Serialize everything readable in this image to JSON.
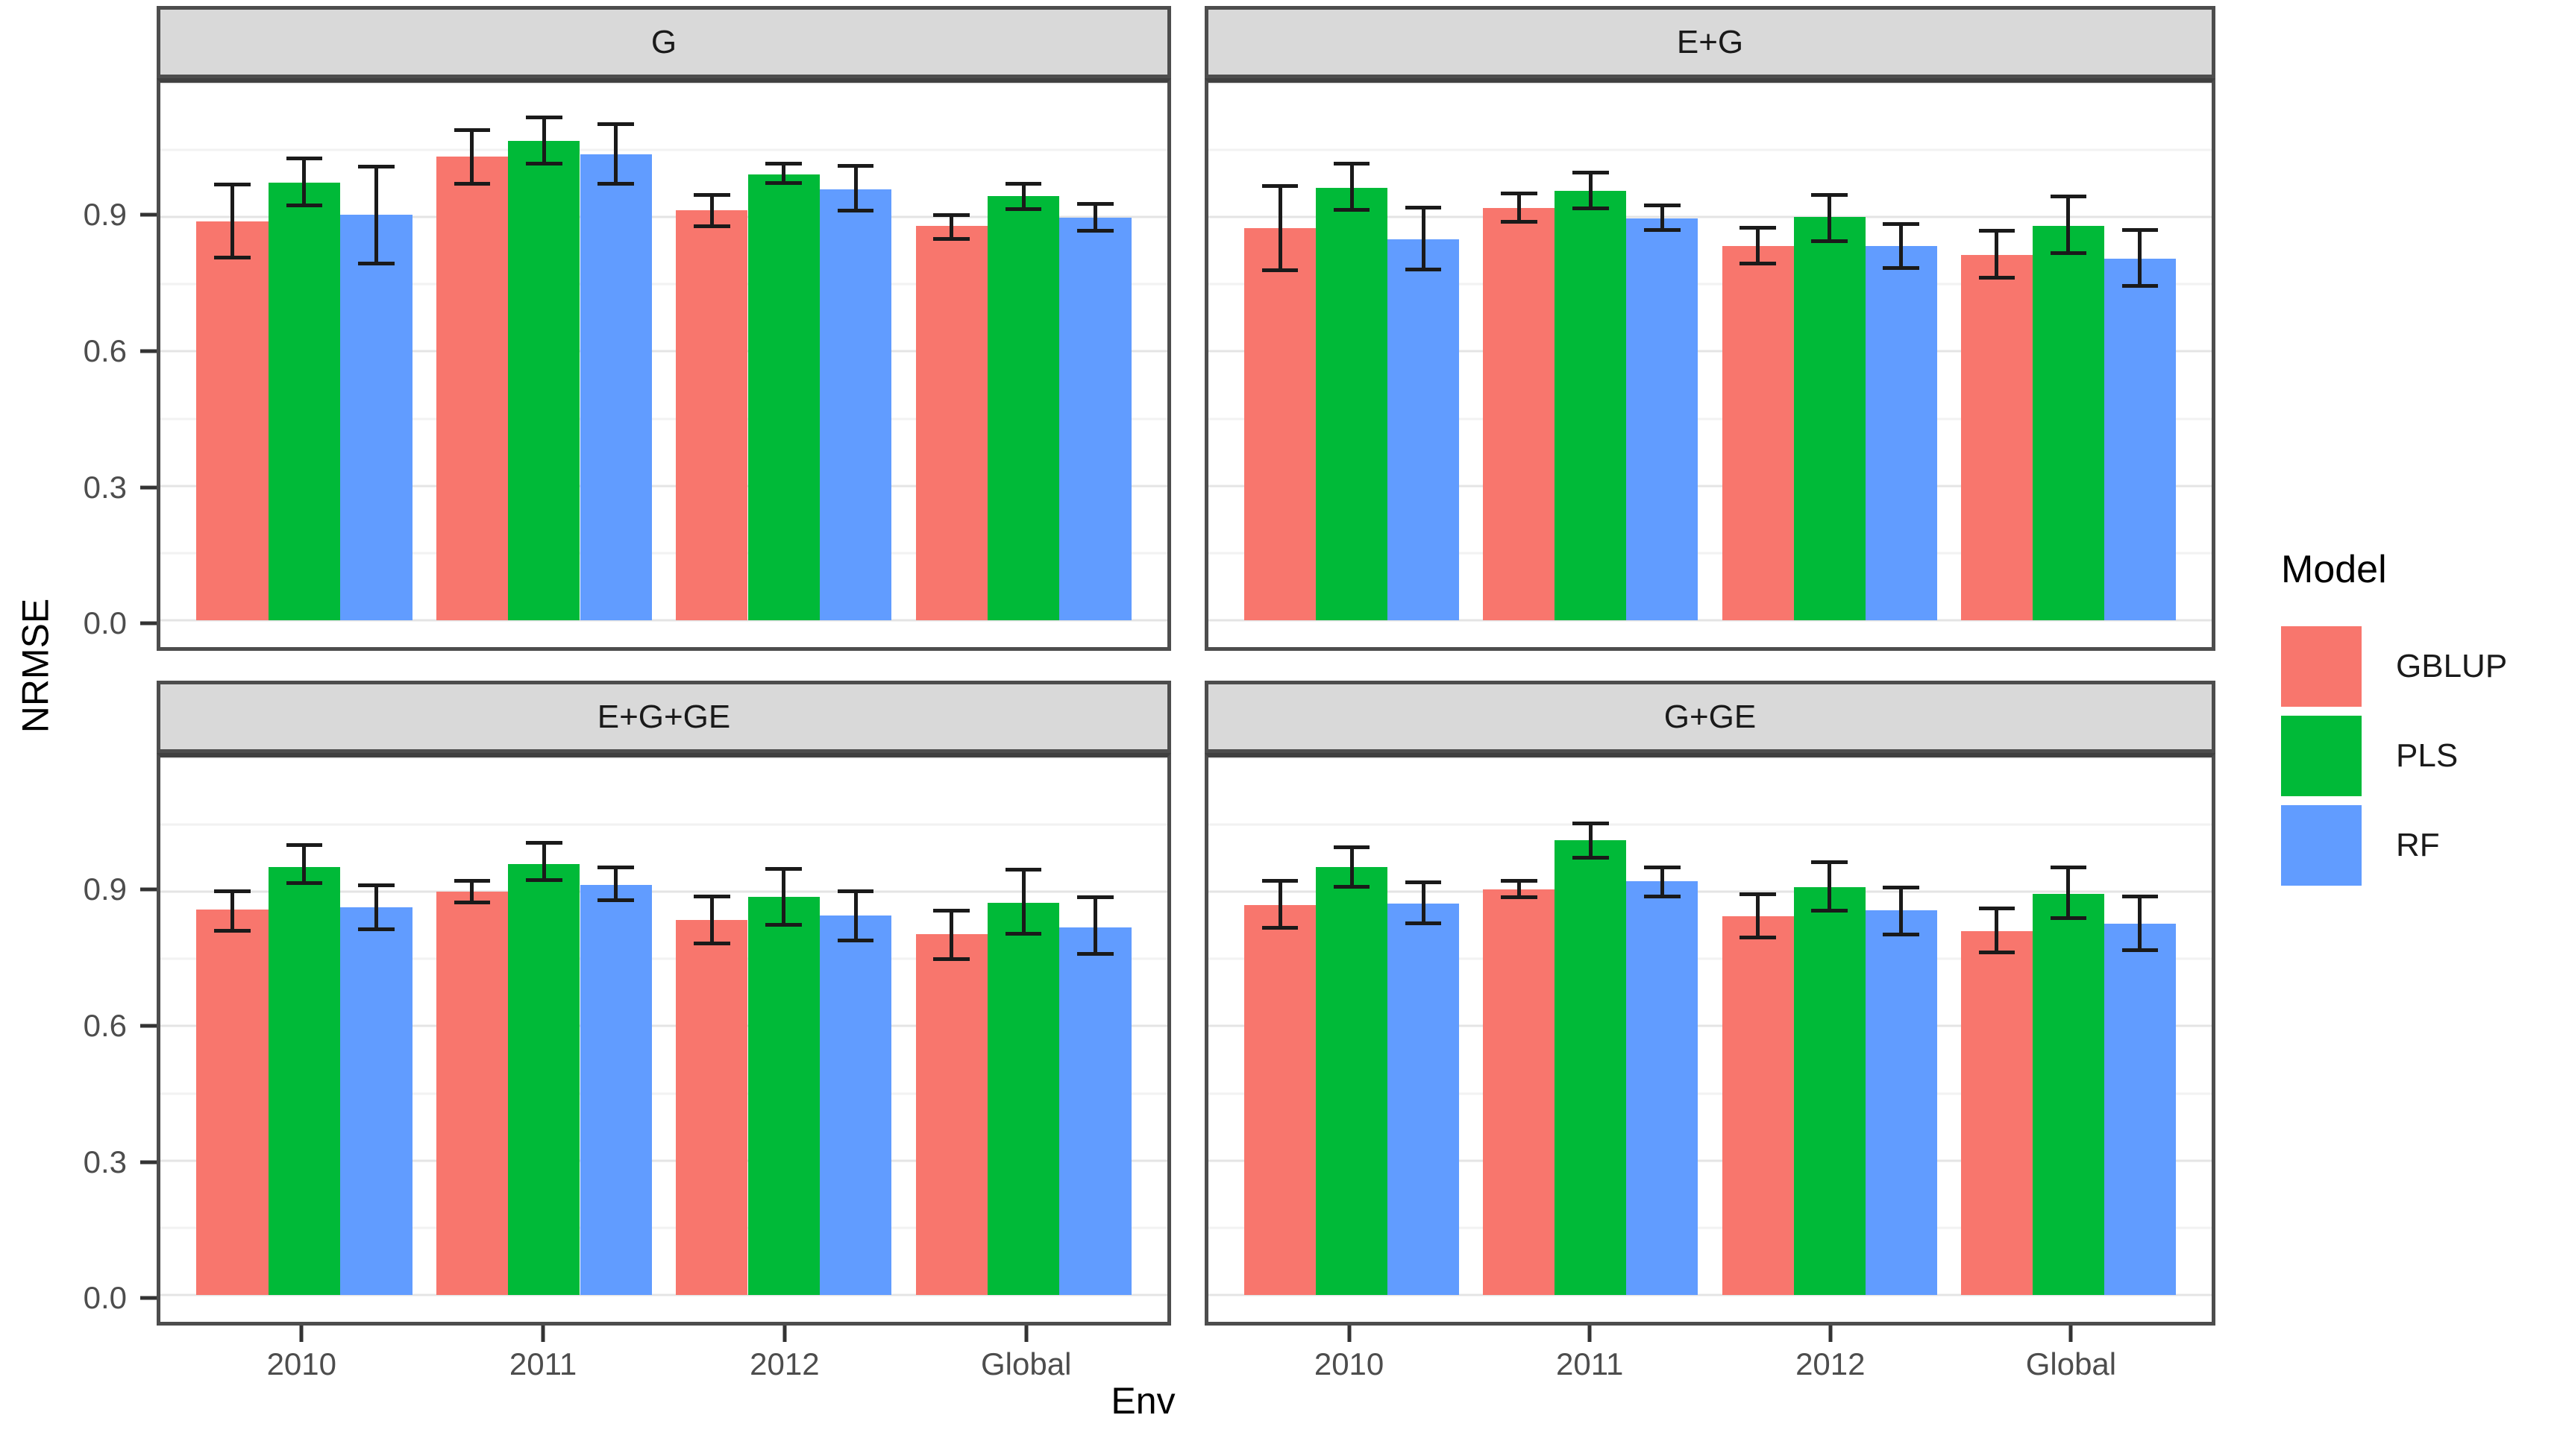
{
  "chart_data": {
    "type": "bar",
    "faceted": true,
    "ylabel": "NRMSE",
    "xlabel": "Env",
    "legend_title": "Model",
    "legend_position": "right",
    "grid_on": true,
    "ylim": [
      -0.06,
      1.2
    ],
    "y_ticks": [
      {
        "v": 0.0,
        "label": "0.0"
      },
      {
        "v": 0.3,
        "label": "0.3"
      },
      {
        "v": 0.6,
        "label": "0.6"
      },
      {
        "v": 0.9,
        "label": "0.9"
      }
    ],
    "grid": {
      "major": [
        0,
        0.3,
        0.6,
        0.9,
        1.2
      ],
      "minor": [
        0.15,
        0.45,
        0.75,
        1.05
      ]
    },
    "categories": [
      "2010",
      "2011",
      "2012",
      "Global"
    ],
    "series": [
      {
        "name": "GBLUP",
        "color": "#F8766D"
      },
      {
        "name": "PLS",
        "color": "#00BA38"
      },
      {
        "name": "RF",
        "color": "#619CFF"
      }
    ],
    "error_bars": true,
    "facets": [
      {
        "label": "G",
        "values": {
          "GBLUP": [
            0.89,
            1.035,
            0.915,
            0.88
          ],
          "PLS": [
            0.977,
            1.07,
            0.996,
            0.947
          ],
          "RF": [
            0.905,
            1.04,
            0.962,
            0.898
          ]
        },
        "err_low": {
          "GBLUP": [
            0.81,
            0.975,
            0.88,
            0.852
          ],
          "PLS": [
            0.926,
            1.02,
            0.976,
            0.918
          ],
          "RF": [
            0.796,
            0.975,
            0.915,
            0.87
          ]
        },
        "err_high": {
          "GBLUP": [
            0.972,
            1.095,
            0.95,
            0.905
          ],
          "PLS": [
            1.031,
            1.122,
            1.02,
            0.975
          ],
          "RF": [
            1.013,
            1.107,
            1.014,
            0.929
          ]
        }
      },
      {
        "label": "E+G",
        "values": {
          "GBLUP": [
            0.875,
            0.92,
            0.836,
            0.816
          ],
          "PLS": [
            0.966,
            0.959,
            0.9,
            0.881
          ],
          "RF": [
            0.851,
            0.897,
            0.836,
            0.808
          ]
        },
        "err_low": {
          "GBLUP": [
            0.782,
            0.89,
            0.797,
            0.765
          ],
          "PLS": [
            0.917,
            0.92,
            0.846,
            0.819
          ],
          "RF": [
            0.783,
            0.872,
            0.787,
            0.746
          ]
        },
        "err_high": {
          "GBLUP": [
            0.969,
            0.953,
            0.877,
            0.869
          ],
          "PLS": [
            1.019,
            0.999,
            0.95,
            0.946
          ],
          "RF": [
            0.921,
            0.926,
            0.885,
            0.871
          ]
        }
      },
      {
        "label": "E+G+GE",
        "values": {
          "GBLUP": [
            0.86,
            0.901,
            0.837,
            0.805
          ],
          "PLS": [
            0.956,
            0.962,
            0.888,
            0.876
          ],
          "RF": [
            0.866,
            0.916,
            0.847,
            0.821
          ]
        },
        "err_low": {
          "GBLUP": [
            0.813,
            0.876,
            0.785,
            0.75
          ],
          "PLS": [
            0.919,
            0.927,
            0.826,
            0.807
          ],
          "RF": [
            0.816,
            0.882,
            0.792,
            0.761
          ]
        },
        "err_high": {
          "GBLUP": [
            0.901,
            0.924,
            0.89,
            0.858
          ],
          "PLS": [
            1.005,
            1.01,
            0.952,
            0.949
          ],
          "RF": [
            0.915,
            0.954,
            0.902,
            0.888
          ]
        }
      },
      {
        "label": "G+GE",
        "values": {
          "GBLUP": [
            0.871,
            0.906,
            0.845,
            0.812
          ],
          "PLS": [
            0.955,
            1.015,
            0.911,
            0.896
          ],
          "RF": [
            0.874,
            0.924,
            0.858,
            0.829
          ]
        },
        "err_low": {
          "GBLUP": [
            0.819,
            0.888,
            0.798,
            0.764
          ],
          "PLS": [
            0.911,
            0.976,
            0.858,
            0.841
          ],
          "RF": [
            0.829,
            0.89,
            0.804,
            0.77
          ]
        },
        "err_high": {
          "GBLUP": [
            0.924,
            0.924,
            0.894,
            0.863
          ],
          "PLS": [
            0.999,
            1.053,
            0.967,
            0.955
          ],
          "RF": [
            0.921,
            0.955,
            0.91,
            0.89
          ]
        }
      }
    ]
  }
}
